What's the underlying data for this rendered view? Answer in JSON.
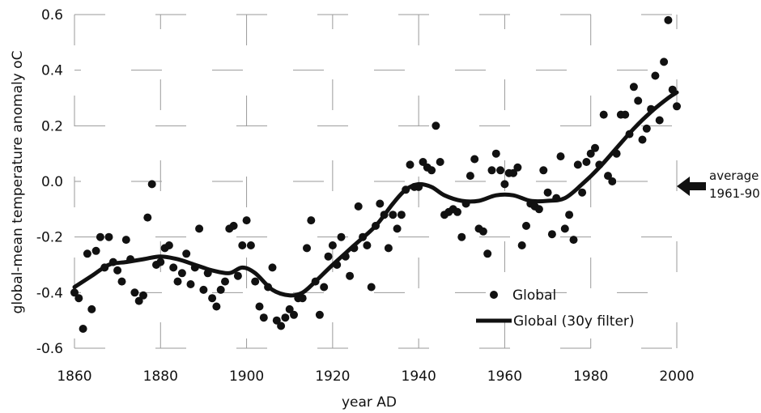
{
  "chart_data": {
    "type": "scatter",
    "title": "",
    "xlabel": "year AD",
    "ylabel": "global-mean temperature anomaly oC",
    "xlim": [
      1860,
      2000
    ],
    "ylim": [
      -0.6,
      0.6
    ],
    "x_ticks": [
      "1860",
      "1880",
      "1900",
      "1920",
      "1940",
      "1960",
      "1980",
      "2000"
    ],
    "y_ticks": [
      "0.6",
      "0.4",
      "0.2",
      "0.0",
      "-0.2",
      "-0.4",
      "-0.6"
    ],
    "grid": true,
    "legend_position": "bottom-right",
    "series": [
      {
        "name": "Global",
        "type": "scatter",
        "color": "#111111",
        "x": [
          1860,
          1861,
          1862,
          1863,
          1864,
          1865,
          1866,
          1867,
          1868,
          1869,
          1870,
          1871,
          1872,
          1873,
          1874,
          1875,
          1876,
          1877,
          1878,
          1879,
          1880,
          1881,
          1882,
          1883,
          1884,
          1885,
          1886,
          1887,
          1888,
          1889,
          1890,
          1891,
          1892,
          1893,
          1894,
          1895,
          1896,
          1897,
          1898,
          1899,
          1900,
          1901,
          1902,
          1903,
          1904,
          1905,
          1906,
          1907,
          1908,
          1909,
          1910,
          1911,
          1912,
          1913,
          1914,
          1915,
          1916,
          1917,
          1918,
          1919,
          1920,
          1921,
          1922,
          1923,
          1924,
          1925,
          1926,
          1927,
          1928,
          1929,
          1930,
          1931,
          1932,
          1933,
          1934,
          1935,
          1936,
          1937,
          1938,
          1939,
          1940,
          1941,
          1942,
          1943,
          1944,
          1945,
          1946,
          1947,
          1948,
          1949,
          1950,
          1951,
          1952,
          1953,
          1954,
          1955,
          1956,
          1957,
          1958,
          1959,
          1960,
          1961,
          1962,
          1963,
          1964,
          1965,
          1966,
          1967,
          1968,
          1969,
          1970,
          1971,
          1972,
          1973,
          1974,
          1975,
          1976,
          1977,
          1978,
          1979,
          1980,
          1981,
          1982,
          1983,
          1984,
          1985,
          1986,
          1987,
          1988,
          1989,
          1990,
          1991,
          1992,
          1993,
          1994,
          1995,
          1996,
          1997,
          1998,
          1999,
          2000
        ],
        "y": [
          -0.4,
          -0.42,
          -0.53,
          -0.26,
          -0.46,
          -0.25,
          -0.2,
          -0.31,
          -0.2,
          -0.29,
          -0.32,
          -0.36,
          -0.21,
          -0.28,
          -0.4,
          -0.43,
          -0.41,
          -0.13,
          -0.01,
          -0.3,
          -0.29,
          -0.24,
          -0.23,
          -0.31,
          -0.36,
          -0.33,
          -0.26,
          -0.37,
          -0.31,
          -0.17,
          -0.39,
          -0.33,
          -0.42,
          -0.45,
          -0.39,
          -0.36,
          -0.17,
          -0.16,
          -0.34,
          -0.23,
          -0.14,
          -0.23,
          -0.36,
          -0.45,
          -0.49,
          -0.38,
          -0.31,
          -0.5,
          -0.52,
          -0.49,
          -0.46,
          -0.48,
          -0.42,
          -0.42,
          -0.24,
          -0.14,
          -0.36,
          -0.48,
          -0.38,
          -0.27,
          -0.23,
          -0.3,
          -0.2,
          -0.27,
          -0.34,
          -0.24,
          -0.09,
          -0.2,
          -0.23,
          -0.38,
          -0.16,
          -0.08,
          -0.12,
          -0.24,
          -0.12,
          -0.17,
          -0.12,
          -0.03,
          0.06,
          -0.02,
          -0.02,
          0.07,
          0.05,
          0.04,
          0.2,
          0.07,
          -0.12,
          -0.11,
          -0.1,
          -0.11,
          -0.2,
          -0.08,
          0.02,
          0.08,
          -0.17,
          -0.18,
          -0.26,
          0.04,
          0.1,
          0.04,
          -0.01,
          0.03,
          0.03,
          0.05,
          -0.23,
          -0.16,
          -0.08,
          -0.09,
          -0.1,
          0.04,
          -0.04,
          -0.19,
          -0.06,
          0.09,
          -0.17,
          -0.12,
          -0.21,
          0.06,
          -0.04,
          0.07,
          0.1,
          0.12,
          0.06,
          0.24,
          0.02,
          0.0,
          0.1,
          0.24,
          0.24,
          0.17,
          0.34,
          0.29,
          0.15,
          0.19,
          0.26,
          0.38,
          0.22,
          0.43,
          0.58,
          0.33,
          0.27
        ]
      },
      {
        "name": "Global (30y filter)",
        "type": "line",
        "color": "#111111",
        "x": [
          1860,
          1864,
          1868,
          1872,
          1876,
          1880,
          1884,
          1888,
          1892,
          1896,
          1899,
          1902,
          1906,
          1910,
          1913,
          1916,
          1920,
          1925,
          1930,
          1934,
          1937,
          1940,
          1943,
          1946,
          1950,
          1954,
          1958,
          1962,
          1966,
          1970,
          1974,
          1978,
          1982,
          1986,
          1990,
          1994,
          1998,
          2000
        ],
        "y": [
          -0.38,
          -0.34,
          -0.3,
          -0.29,
          -0.28,
          -0.27,
          -0.28,
          -0.3,
          -0.32,
          -0.33,
          -0.31,
          -0.33,
          -0.39,
          -0.41,
          -0.4,
          -0.36,
          -0.3,
          -0.23,
          -0.16,
          -0.08,
          -0.03,
          -0.01,
          -0.02,
          -0.05,
          -0.07,
          -0.07,
          -0.05,
          -0.05,
          -0.07,
          -0.07,
          -0.06,
          -0.01,
          0.05,
          0.12,
          0.19,
          0.25,
          0.3,
          0.32
        ]
      }
    ],
    "annotations": [
      {
        "text_line1": "average",
        "text_line2": "1961-90",
        "y": 0.0
      }
    ]
  }
}
